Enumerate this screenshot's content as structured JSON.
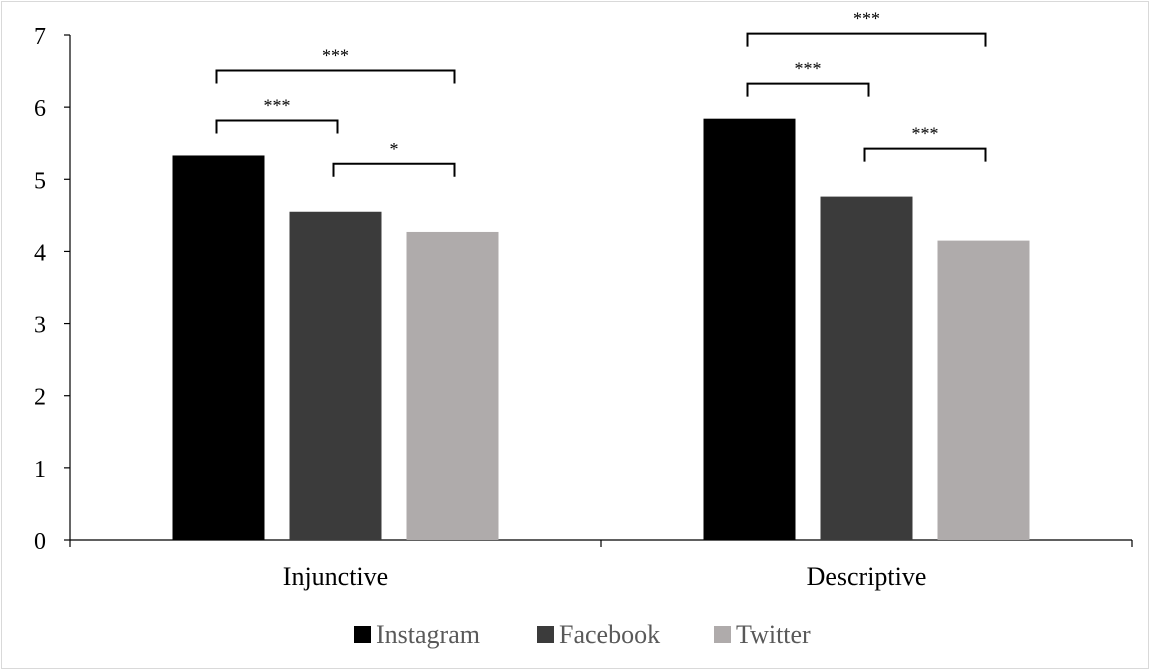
{
  "chart_data": {
    "type": "bar",
    "title": "",
    "xlabel": "",
    "ylabel": "",
    "ylim": [
      0,
      7
    ],
    "yticks": [
      "0",
      "1",
      "2",
      "3",
      "4",
      "5",
      "6",
      "7"
    ],
    "categories": [
      "Injunctive",
      "Descriptive"
    ],
    "series": [
      {
        "name": "Instagram",
        "color": "#000000",
        "values": [
          5.33,
          5.84
        ]
      },
      {
        "name": "Facebook",
        "color": "#3b3b3b",
        "values": [
          4.55,
          4.76
        ]
      },
      {
        "name": "Twitter",
        "color": "#afabab",
        "values": [
          4.27,
          4.15
        ]
      }
    ],
    "legend": {
      "position": "bottom"
    },
    "grid": false,
    "significance_brackets": [
      {
        "category": 0,
        "from_series": 0,
        "to_series": 1,
        "label": "***"
      },
      {
        "category": 0,
        "from_series": 0,
        "to_series": 2,
        "label": "***"
      },
      {
        "category": 0,
        "from_series": 1,
        "to_series": 2,
        "label": "*"
      },
      {
        "category": 1,
        "from_series": 0,
        "to_series": 1,
        "label": "***"
      },
      {
        "category": 1,
        "from_series": 0,
        "to_series": 2,
        "label": "***"
      },
      {
        "category": 1,
        "from_series": 1,
        "to_series": 2,
        "label": "***"
      }
    ]
  }
}
